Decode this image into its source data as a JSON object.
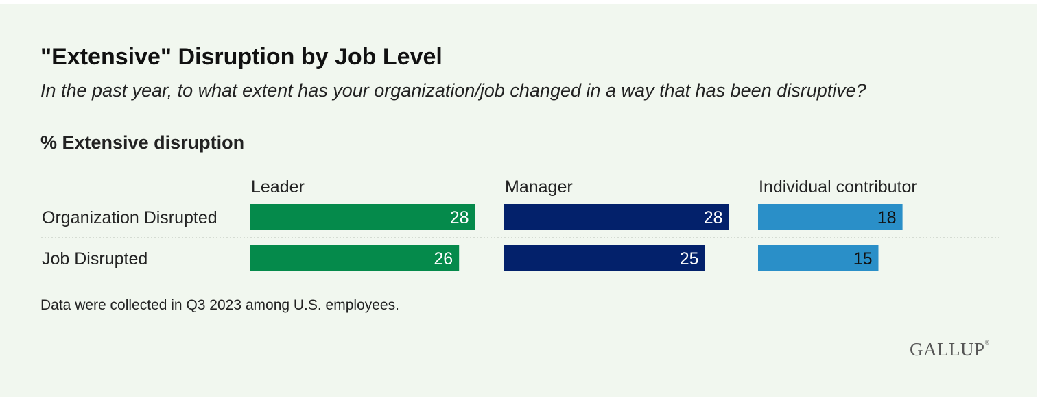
{
  "chart_data": {
    "type": "bar",
    "title": "\"Extensive\" Disruption by Job Level",
    "subtitle": "In the past year, to what extent has your organization/job changed in a way that has been disruptive?",
    "measure_label": "% Extensive disruption",
    "categories": [
      "Organization Disrupted",
      "Job Disrupted"
    ],
    "series": [
      {
        "name": "Leader",
        "values": [
          28,
          26
        ],
        "color": "#058a4b",
        "label_color": "#ffffff"
      },
      {
        "name": "Manager",
        "values": [
          28,
          25
        ],
        "color": "#03216b",
        "label_color": "#ffffff"
      },
      {
        "name": "Individual contributor",
        "values": [
          18,
          15
        ],
        "color": "#2a8fc8",
        "label_color": "#111111"
      }
    ],
    "xlim": [
      0,
      100
    ],
    "grid": false,
    "legend": "column headers above bars"
  },
  "footnote": "Data were collected in Q3 2023 among U.S. employees.",
  "logo": {
    "text": "GALLUP",
    "mark": "®"
  }
}
